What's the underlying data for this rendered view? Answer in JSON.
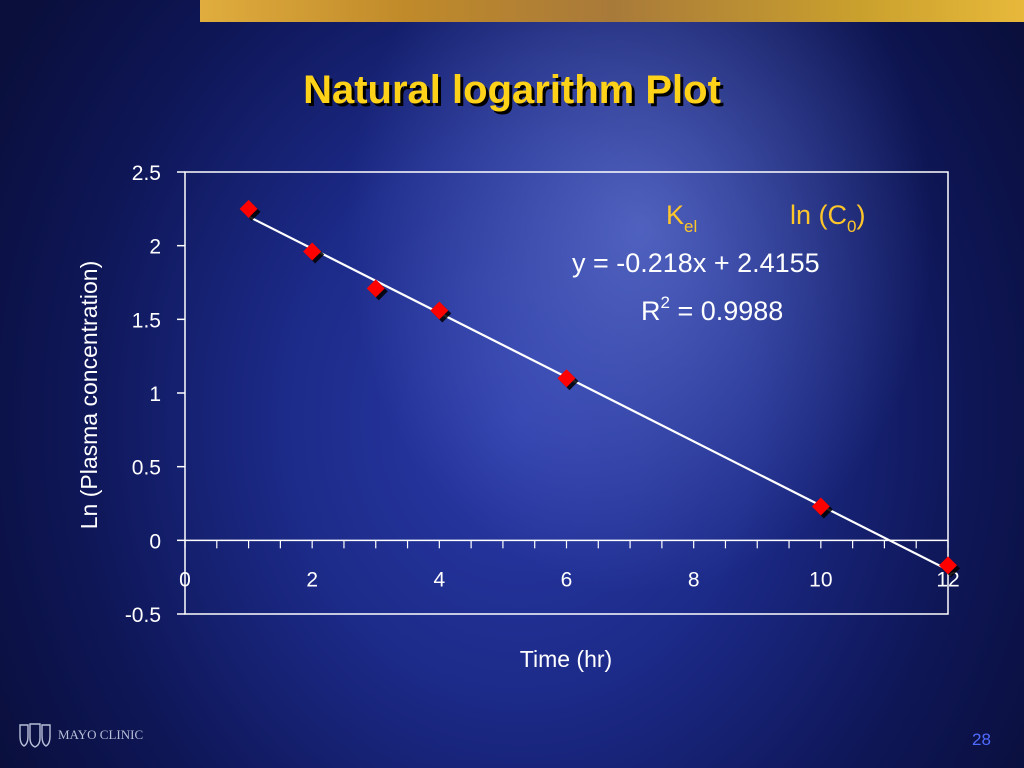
{
  "slide": {
    "title": "Natural logarithm Plot",
    "page_number": "28",
    "logo_text": "MAYO CLINIC"
  },
  "annotations": {
    "kel_label": "K",
    "kel_sub": "el",
    "c0_label_pre": "ln (C",
    "c0_sub": "0",
    "c0_label_post": ")",
    "equation": "y = -0.218x + 2.4155",
    "r2_label": "R",
    "r2_sup": "2",
    "r2_value": " = 0.9988"
  },
  "colors": {
    "title": "#ffd21a",
    "marker": "#ff0000",
    "line": "#ffffff",
    "annotation_gold": "#ffc62a",
    "page_number": "#4f6bff"
  },
  "chart_data": {
    "type": "scatter",
    "xlabel": "Time (hr)",
    "ylabel": "Ln (Plasma concentration)",
    "xlim": [
      0,
      12
    ],
    "ylim": [
      -0.5,
      2.5
    ],
    "xticks": [
      "0",
      "2",
      "4",
      "6",
      "8",
      "10",
      "12"
    ],
    "yticks": [
      "2.5",
      "2",
      "1.5",
      "1",
      "0.5",
      "0",
      "-0.5"
    ],
    "x_minor_tick_step": 0.5,
    "grid": false,
    "series": [
      {
        "x": [
          1,
          2,
          3,
          4,
          6,
          10,
          12
        ],
        "y": [
          2.25,
          1.96,
          1.71,
          1.56,
          1.1,
          0.23,
          -0.17
        ],
        "marker": "diamond"
      }
    ],
    "trendline": {
      "slope": -0.218,
      "intercept": 2.4155,
      "x_range": [
        1,
        12
      ]
    }
  }
}
